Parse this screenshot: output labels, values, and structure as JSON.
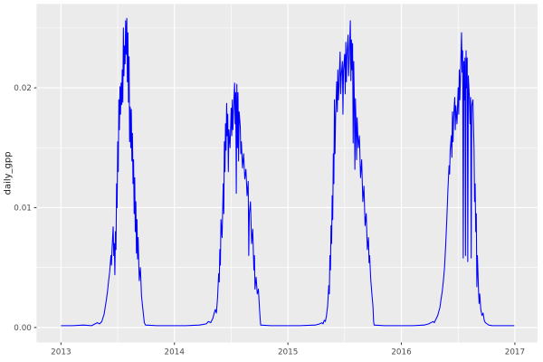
{
  "chart_data": {
    "type": "line",
    "title": "",
    "xlabel": "",
    "ylabel": "daily_gpp",
    "legend": "none",
    "grid": true,
    "x_ticks": [
      2013,
      2014,
      2015,
      2016,
      2017
    ],
    "x_tick_labels": [
      "2013",
      "2014",
      "2015",
      "2016",
      "2017"
    ],
    "x_minor_ticks": [
      2013.5,
      2014.5,
      2015.5,
      2016.5
    ],
    "y_ticks": [
      0.0,
      0.01,
      0.02
    ],
    "y_tick_labels": [
      "0.00",
      "0.01",
      "0.02"
    ],
    "y_minor_ticks": [
      0.005,
      0.015,
      0.025
    ],
    "xlim": [
      2012.785,
      2017.2
    ],
    "ylim": [
      -0.00125,
      0.027
    ],
    "style": {
      "line_color": "#0000FF",
      "panel_bg": "#EBEBEB",
      "grid_color": "#FFFFFF",
      "tick_color": "#333333",
      "tick_label_color": "#4D4D4D",
      "axis_title_color": "#1A1A1A",
      "outer_bg": "#FFFFFF"
    },
    "series": [
      {
        "name": "daily_gpp",
        "points": [
          [
            2013.0,
            0.00015
          ],
          [
            2013.1,
            0.00015
          ],
          [
            2013.2,
            0.0002
          ],
          [
            2013.27,
            0.00015
          ],
          [
            2013.3,
            0.0003
          ],
          [
            2013.32,
            0.0004
          ],
          [
            2013.34,
            0.0003
          ],
          [
            2013.36,
            0.0005
          ],
          [
            2013.37,
            0.0008
          ],
          [
            2013.38,
            0.0011
          ],
          [
            2013.39,
            0.0017
          ],
          [
            2013.4,
            0.0023
          ],
          [
            2013.41,
            0.003
          ],
          [
            2013.42,
            0.0039
          ],
          [
            2013.43,
            0.0047
          ],
          [
            2013.44,
            0.006
          ],
          [
            2013.445,
            0.0052
          ],
          [
            2013.45,
            0.0065
          ],
          [
            2013.46,
            0.0084
          ],
          [
            2013.465,
            0.006
          ],
          [
            2013.47,
            0.007
          ],
          [
            2013.475,
            0.0044
          ],
          [
            2013.48,
            0.008
          ],
          [
            2013.485,
            0.0065
          ],
          [
            2013.49,
            0.012
          ],
          [
            2013.495,
            0.01
          ],
          [
            2013.5,
            0.0155
          ],
          [
            2013.505,
            0.013
          ],
          [
            2013.51,
            0.019
          ],
          [
            2013.515,
            0.0165
          ],
          [
            2013.52,
            0.0201
          ],
          [
            2013.525,
            0.0178
          ],
          [
            2013.53,
            0.0204
          ],
          [
            2013.535,
            0.0186
          ],
          [
            2013.54,
            0.0215
          ],
          [
            2013.545,
            0.0188
          ],
          [
            2013.55,
            0.025
          ],
          [
            2013.555,
            0.021
          ],
          [
            2013.56,
            0.0235
          ],
          [
            2013.565,
            0.022
          ],
          [
            2013.57,
            0.0256
          ],
          [
            2013.575,
            0.0228
          ],
          [
            2013.58,
            0.0258
          ],
          [
            2013.585,
            0.0205
          ],
          [
            2013.59,
            0.0246
          ],
          [
            2013.595,
            0.0188
          ],
          [
            2013.6,
            0.0226
          ],
          [
            2013.605,
            0.0155
          ],
          [
            2013.61,
            0.0184
          ],
          [
            2013.615,
            0.015
          ],
          [
            2013.62,
            0.0182
          ],
          [
            2013.625,
            0.0139
          ],
          [
            2013.63,
            0.0162
          ],
          [
            2013.635,
            0.012
          ],
          [
            2013.64,
            0.014
          ],
          [
            2013.645,
            0.0095
          ],
          [
            2013.65,
            0.0125
          ],
          [
            2013.655,
            0.008
          ],
          [
            2013.66,
            0.0105
          ],
          [
            2013.665,
            0.0062
          ],
          [
            2013.67,
            0.009
          ],
          [
            2013.675,
            0.0057
          ],
          [
            2013.68,
            0.0075
          ],
          [
            2013.69,
            0.0039
          ],
          [
            2013.7,
            0.005
          ],
          [
            2013.71,
            0.0026
          ],
          [
            2013.72,
            0.0017
          ],
          [
            2013.73,
            0.0008
          ],
          [
            2013.735,
            0.0004
          ],
          [
            2013.745,
            0.0002
          ],
          [
            2013.85,
            0.00015
          ],
          [
            2013.99,
            0.00015
          ],
          [
            2014.1,
            0.00015
          ],
          [
            2014.22,
            0.0002
          ],
          [
            2014.28,
            0.0003
          ],
          [
            2014.3,
            0.0005
          ],
          [
            2014.32,
            0.0004
          ],
          [
            2014.34,
            0.0008
          ],
          [
            2014.35,
            0.0012
          ],
          [
            2014.36,
            0.0015
          ],
          [
            2014.37,
            0.0012
          ],
          [
            2014.38,
            0.0025
          ],
          [
            2014.39,
            0.0045
          ],
          [
            2014.395,
            0.0038
          ],
          [
            2014.4,
            0.0065
          ],
          [
            2014.405,
            0.0052
          ],
          [
            2014.41,
            0.009
          ],
          [
            2014.42,
            0.0075
          ],
          [
            2014.43,
            0.012
          ],
          [
            2014.435,
            0.0095
          ],
          [
            2014.44,
            0.0155
          ],
          [
            2014.445,
            0.013
          ],
          [
            2014.45,
            0.017
          ],
          [
            2014.455,
            0.0148
          ],
          [
            2014.46,
            0.0187
          ],
          [
            2014.465,
            0.016
          ],
          [
            2014.47,
            0.0178
          ],
          [
            2014.475,
            0.013
          ],
          [
            2014.48,
            0.0165
          ],
          [
            2014.49,
            0.015
          ],
          [
            2014.5,
            0.0183
          ],
          [
            2014.505,
            0.016
          ],
          [
            2014.51,
            0.019
          ],
          [
            2014.515,
            0.0165
          ],
          [
            2014.52,
            0.018
          ],
          [
            2014.53,
            0.0204
          ],
          [
            2014.535,
            0.017
          ],
          [
            2014.54,
            0.0196
          ],
          [
            2014.545,
            0.0112
          ],
          [
            2014.55,
            0.0203
          ],
          [
            2014.555,
            0.015
          ],
          [
            2014.56,
            0.0196
          ],
          [
            2014.565,
            0.0139
          ],
          [
            2014.57,
            0.018
          ],
          [
            2014.58,
            0.0168
          ],
          [
            2014.585,
            0.0145
          ],
          [
            2014.59,
            0.0155
          ],
          [
            2014.6,
            0.0133
          ],
          [
            2014.61,
            0.0145
          ],
          [
            2014.62,
            0.0124
          ],
          [
            2014.63,
            0.0132
          ],
          [
            2014.64,
            0.011
          ],
          [
            2014.65,
            0.0122
          ],
          [
            2014.655,
            0.006
          ],
          [
            2014.66,
            0.0095
          ],
          [
            2014.67,
            0.0105
          ],
          [
            2014.68,
            0.007
          ],
          [
            2014.69,
            0.0082
          ],
          [
            2014.7,
            0.0048
          ],
          [
            2014.705,
            0.006
          ],
          [
            2014.71,
            0.0032
          ],
          [
            2014.72,
            0.0042
          ],
          [
            2014.73,
            0.0028
          ],
          [
            2014.74,
            0.0032
          ],
          [
            2014.75,
            0.0015
          ],
          [
            2014.755,
            0.0008
          ],
          [
            2014.76,
            0.0002
          ],
          [
            2014.85,
            0.00015
          ],
          [
            2014.99,
            0.00015
          ],
          [
            2015.1,
            0.00015
          ],
          [
            2015.24,
            0.0002
          ],
          [
            2015.28,
            0.0003
          ],
          [
            2015.3,
            0.0004
          ],
          [
            2015.31,
            0.0003
          ],
          [
            2015.32,
            0.0006
          ],
          [
            2015.33,
            0.0005
          ],
          [
            2015.34,
            0.001
          ],
          [
            2015.35,
            0.0018
          ],
          [
            2015.36,
            0.0035
          ],
          [
            2015.365,
            0.0028
          ],
          [
            2015.37,
            0.006
          ],
          [
            2015.375,
            0.0048
          ],
          [
            2015.38,
            0.0085
          ],
          [
            2015.385,
            0.007
          ],
          [
            2015.39,
            0.011
          ],
          [
            2015.395,
            0.009
          ],
          [
            2015.4,
            0.0145
          ],
          [
            2015.405,
            0.012
          ],
          [
            2015.41,
            0.019
          ],
          [
            2015.415,
            0.0145
          ],
          [
            2015.42,
            0.0175
          ],
          [
            2015.43,
            0.0205
          ],
          [
            2015.435,
            0.018
          ],
          [
            2015.44,
            0.0215
          ],
          [
            2015.445,
            0.019
          ],
          [
            2015.45,
            0.02
          ],
          [
            2015.46,
            0.023
          ],
          [
            2015.465,
            0.0195
          ],
          [
            2015.47,
            0.021
          ],
          [
            2015.48,
            0.0222
          ],
          [
            2015.485,
            0.0178
          ],
          [
            2015.49,
            0.0215
          ],
          [
            2015.5,
            0.0228
          ],
          [
            2015.505,
            0.0195
          ],
          [
            2015.51,
            0.0238
          ],
          [
            2015.515,
            0.0205
          ],
          [
            2015.52,
            0.0226
          ],
          [
            2015.53,
            0.0244
          ],
          [
            2015.535,
            0.021
          ],
          [
            2015.54,
            0.0222
          ],
          [
            2015.55,
            0.0256
          ],
          [
            2015.555,
            0.0206
          ],
          [
            2015.56,
            0.024
          ],
          [
            2015.565,
            0.0215
          ],
          [
            2015.57,
            0.0237
          ],
          [
            2015.575,
            0.0154
          ],
          [
            2015.58,
            0.0222
          ],
          [
            2015.585,
            0.019
          ],
          [
            2015.59,
            0.0132
          ],
          [
            2015.595,
            0.0191
          ],
          [
            2015.6,
            0.017
          ],
          [
            2015.605,
            0.014
          ],
          [
            2015.61,
            0.0175
          ],
          [
            2015.62,
            0.015
          ],
          [
            2015.63,
            0.016
          ],
          [
            2015.64,
            0.0125
          ],
          [
            2015.65,
            0.014
          ],
          [
            2015.66,
            0.0105
          ],
          [
            2015.67,
            0.0118
          ],
          [
            2015.68,
            0.0085
          ],
          [
            2015.69,
            0.0095
          ],
          [
            2015.7,
            0.0065
          ],
          [
            2015.71,
            0.0075
          ],
          [
            2015.715,
            0.0054
          ],
          [
            2015.72,
            0.006
          ],
          [
            2015.73,
            0.004
          ],
          [
            2015.74,
            0.0028
          ],
          [
            2015.75,
            0.0017
          ],
          [
            2015.755,
            0.0005
          ],
          [
            2015.76,
            0.0002
          ],
          [
            2015.85,
            0.00015
          ],
          [
            2015.99,
            0.00015
          ],
          [
            2016.1,
            0.00015
          ],
          [
            2016.2,
            0.0002
          ],
          [
            2016.24,
            0.0003
          ],
          [
            2016.26,
            0.0004
          ],
          [
            2016.28,
            0.0005
          ],
          [
            2016.29,
            0.0004
          ],
          [
            2016.3,
            0.0006
          ],
          [
            2016.32,
            0.001
          ],
          [
            2016.34,
            0.0017
          ],
          [
            2016.35,
            0.0024
          ],
          [
            2016.36,
            0.003
          ],
          [
            2016.37,
            0.0039
          ],
          [
            2016.38,
            0.005
          ],
          [
            2016.39,
            0.0068
          ],
          [
            2016.4,
            0.009
          ],
          [
            2016.41,
            0.0115
          ],
          [
            2016.42,
            0.0135
          ],
          [
            2016.425,
            0.0128
          ],
          [
            2016.43,
            0.0148
          ],
          [
            2016.44,
            0.016
          ],
          [
            2016.445,
            0.0142
          ],
          [
            2016.45,
            0.018
          ],
          [
            2016.455,
            0.0155
          ],
          [
            2016.46,
            0.0175
          ],
          [
            2016.47,
            0.0192
          ],
          [
            2016.475,
            0.0165
          ],
          [
            2016.48,
            0.0185
          ],
          [
            2016.49,
            0.017
          ],
          [
            2016.5,
            0.02
          ],
          [
            2016.505,
            0.0178
          ],
          [
            2016.51,
            0.0215
          ],
          [
            2016.515,
            0.019
          ],
          [
            2016.52,
            0.0208
          ],
          [
            2016.53,
            0.0246
          ],
          [
            2016.535,
            0.0213
          ],
          [
            2016.54,
            0.0231
          ],
          [
            2016.545,
            0.0058
          ],
          [
            2016.55,
            0.0222
          ],
          [
            2016.555,
            0.019
          ],
          [
            2016.56,
            0.0225
          ],
          [
            2016.565,
            0.006
          ],
          [
            2016.57,
            0.0231
          ],
          [
            2016.575,
            0.02
          ],
          [
            2016.58,
            0.0225
          ],
          [
            2016.585,
            0.0055
          ],
          [
            2016.59,
            0.021
          ],
          [
            2016.6,
            0.019
          ],
          [
            2016.605,
            0.017
          ],
          [
            2016.61,
            0.0192
          ],
          [
            2016.615,
            0.0058
          ],
          [
            2016.62,
            0.0185
          ],
          [
            2016.63,
            0.019
          ],
          [
            2016.64,
            0.015
          ],
          [
            2016.645,
            0.0105
          ],
          [
            2016.65,
            0.012
          ],
          [
            2016.655,
            0.008
          ],
          [
            2016.66,
            0.0095
          ],
          [
            2016.665,
            0.0034
          ],
          [
            2016.67,
            0.006
          ],
          [
            2016.68,
            0.003
          ],
          [
            2016.685,
            0.002
          ],
          [
            2016.69,
            0.0028
          ],
          [
            2016.7,
            0.0015
          ],
          [
            2016.71,
            0.001
          ],
          [
            2016.72,
            0.0012
          ],
          [
            2016.73,
            0.0006
          ],
          [
            2016.74,
            0.0004
          ],
          [
            2016.755,
            0.0003
          ],
          [
            2016.77,
            0.0002
          ],
          [
            2016.8,
            0.00015
          ],
          [
            2016.9,
            0.00015
          ],
          [
            2016.995,
            0.00015
          ]
        ]
      }
    ]
  }
}
